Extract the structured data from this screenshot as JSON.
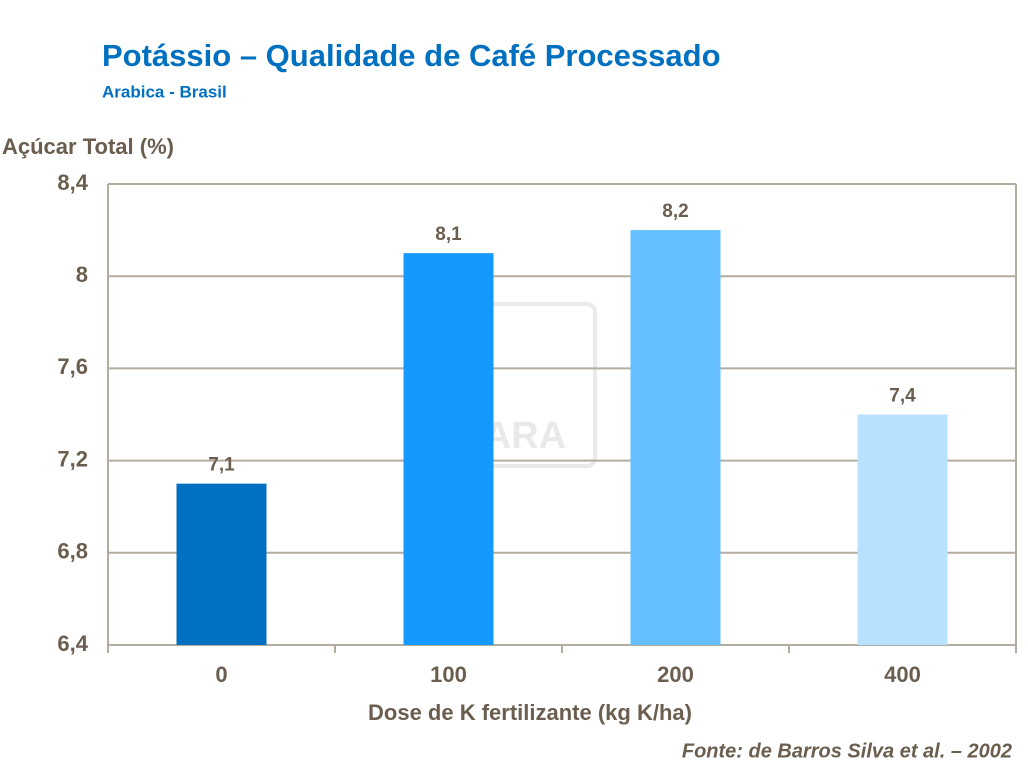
{
  "chart_data": {
    "type": "bar",
    "title": "Potássio – Qualidade de Café Processado",
    "subtitle": "Arabica  - Brasil",
    "y_label": "Açúcar Total (%)",
    "x_label": "Dose de K fertilizante (kg K/ha)",
    "source": "Fonte: de Barros Silva et al. – 2002",
    "watermark": "YARA",
    "categories": [
      "0",
      "100",
      "200",
      "400"
    ],
    "values": [
      7.1,
      8.1,
      8.2,
      7.4
    ],
    "value_labels": [
      "7,1",
      "8,1",
      "8,2",
      "7,4"
    ],
    "colors": [
      "#0070c0",
      "#1499ff",
      "#66bfff",
      "#b8e0ff"
    ],
    "ylim": [
      6.4,
      8.4
    ],
    "yticks": [
      {
        "value": 6.4,
        "label": "6,4"
      },
      {
        "value": 6.8,
        "label": "6,8"
      },
      {
        "value": 7.2,
        "label": "7,2"
      },
      {
        "value": 7.6,
        "label": "7,6"
      },
      8,
      {
        "value": 8.4,
        "label": "8,4"
      }
    ],
    "grid": true
  }
}
